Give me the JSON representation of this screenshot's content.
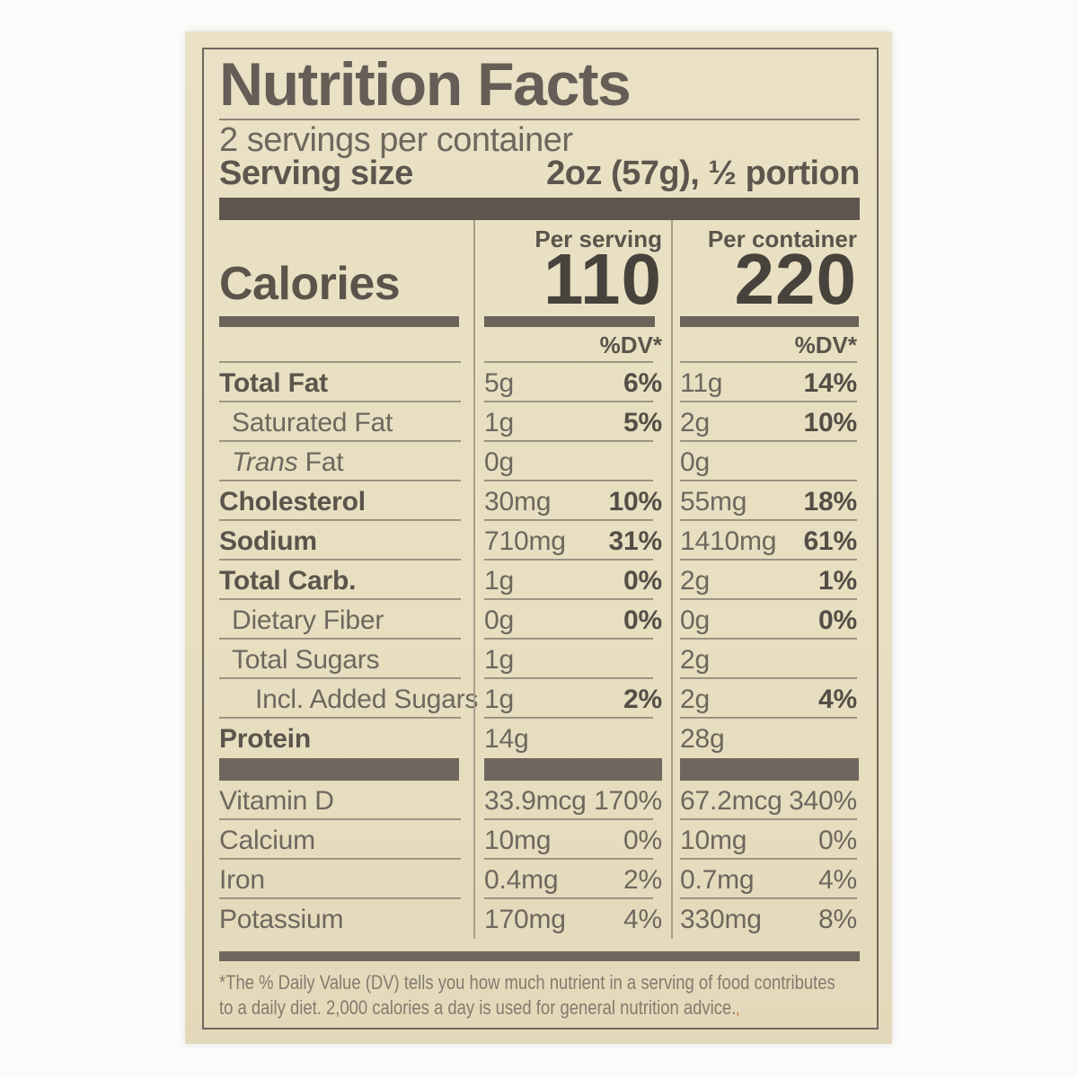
{
  "title": "Nutrition Facts",
  "servings_per_container": "2 servings per container",
  "serving_size": {
    "label": "Serving size",
    "value": "2oz (57g), ½ portion"
  },
  "calories": {
    "label": "Calories",
    "per_serving_label": "Per serving",
    "per_serving_value": "110",
    "per_container_label": "Per container",
    "per_container_value": "220",
    "dv_header": "%DV*"
  },
  "nutrients": [
    {
      "name": "Total Fat",
      "bold": true,
      "indent": 0,
      "serving": {
        "amount": "5g",
        "dv": "6%"
      },
      "container": {
        "amount": "11g",
        "dv": "14%"
      }
    },
    {
      "name": "Saturated Fat",
      "bold": false,
      "indent": 1,
      "serving": {
        "amount": "1g",
        "dv": "5%"
      },
      "container": {
        "amount": "2g",
        "dv": "10%"
      }
    },
    {
      "name_em": "Trans",
      "name": "Fat",
      "bold": false,
      "indent": 1,
      "serving": {
        "amount": "0g"
      },
      "container": {
        "amount": "0g"
      }
    },
    {
      "name": "Cholesterol",
      "bold": true,
      "indent": 0,
      "serving": {
        "amount": "30mg",
        "dv": "10%"
      },
      "container": {
        "amount": "55mg",
        "dv": "18%"
      }
    },
    {
      "name": "Sodium",
      "bold": true,
      "indent": 0,
      "serving": {
        "amount": "710mg",
        "dv": "31%"
      },
      "container": {
        "amount": "1410mg",
        "dv": "61%"
      }
    },
    {
      "name": "Total Carb.",
      "bold": true,
      "indent": 0,
      "serving": {
        "amount": "1g",
        "dv": "0%"
      },
      "container": {
        "amount": "2g",
        "dv": "1%"
      }
    },
    {
      "name": "Dietary Fiber",
      "bold": false,
      "indent": 1,
      "serving": {
        "amount": "0g",
        "dv": "0%"
      },
      "container": {
        "amount": "0g",
        "dv": "0%"
      }
    },
    {
      "name": "Total Sugars",
      "bold": false,
      "indent": 1,
      "serving": {
        "amount": "1g"
      },
      "container": {
        "amount": "2g"
      }
    },
    {
      "name": "Incl. Added Sugars",
      "bold": false,
      "indent": 2,
      "serving": {
        "amount": "1g",
        "dv": "2%"
      },
      "container": {
        "amount": "2g",
        "dv": "4%"
      }
    },
    {
      "name": "Protein",
      "bold": true,
      "indent": 0,
      "last": true,
      "serving": {
        "amount": "14g"
      },
      "container": {
        "amount": "28g"
      }
    }
  ],
  "vitamins": [
    {
      "name": "Vitamin D",
      "serving": {
        "amount": "33.9mcg",
        "dv": "170%"
      },
      "container": {
        "amount": "67.2mcg",
        "dv": "340%"
      }
    },
    {
      "name": "Calcium",
      "serving": {
        "amount": "10mg",
        "dv": "0%"
      },
      "container": {
        "amount": "10mg",
        "dv": "0%"
      }
    },
    {
      "name": "Iron",
      "serving": {
        "amount": "0.4mg",
        "dv": "2%"
      },
      "container": {
        "amount": "0.7mg",
        "dv": "4%"
      }
    },
    {
      "name": "Potassium",
      "last": true,
      "serving": {
        "amount": "170mg",
        "dv": "4%"
      },
      "container": {
        "amount": "330mg",
        "dv": "8%"
      }
    }
  ],
  "footnote": {
    "line1": "*The % Daily Value (DV) tells you how much nutrient in a serving of food contributes",
    "line2": "to a daily diet. 2,000 calories a day is used for general nutrition advice.",
    "mark": ","
  },
  "colors": {
    "label_background": "#e9e0c3",
    "bar_dark": "#5e564d",
    "bar_medium": "#6b6359",
    "text_bold": "#5b544b",
    "text_regular": "#6e675e",
    "hairline": "#948c7d",
    "divider": "#a89e8d",
    "footnote_text": "#837b6f"
  }
}
